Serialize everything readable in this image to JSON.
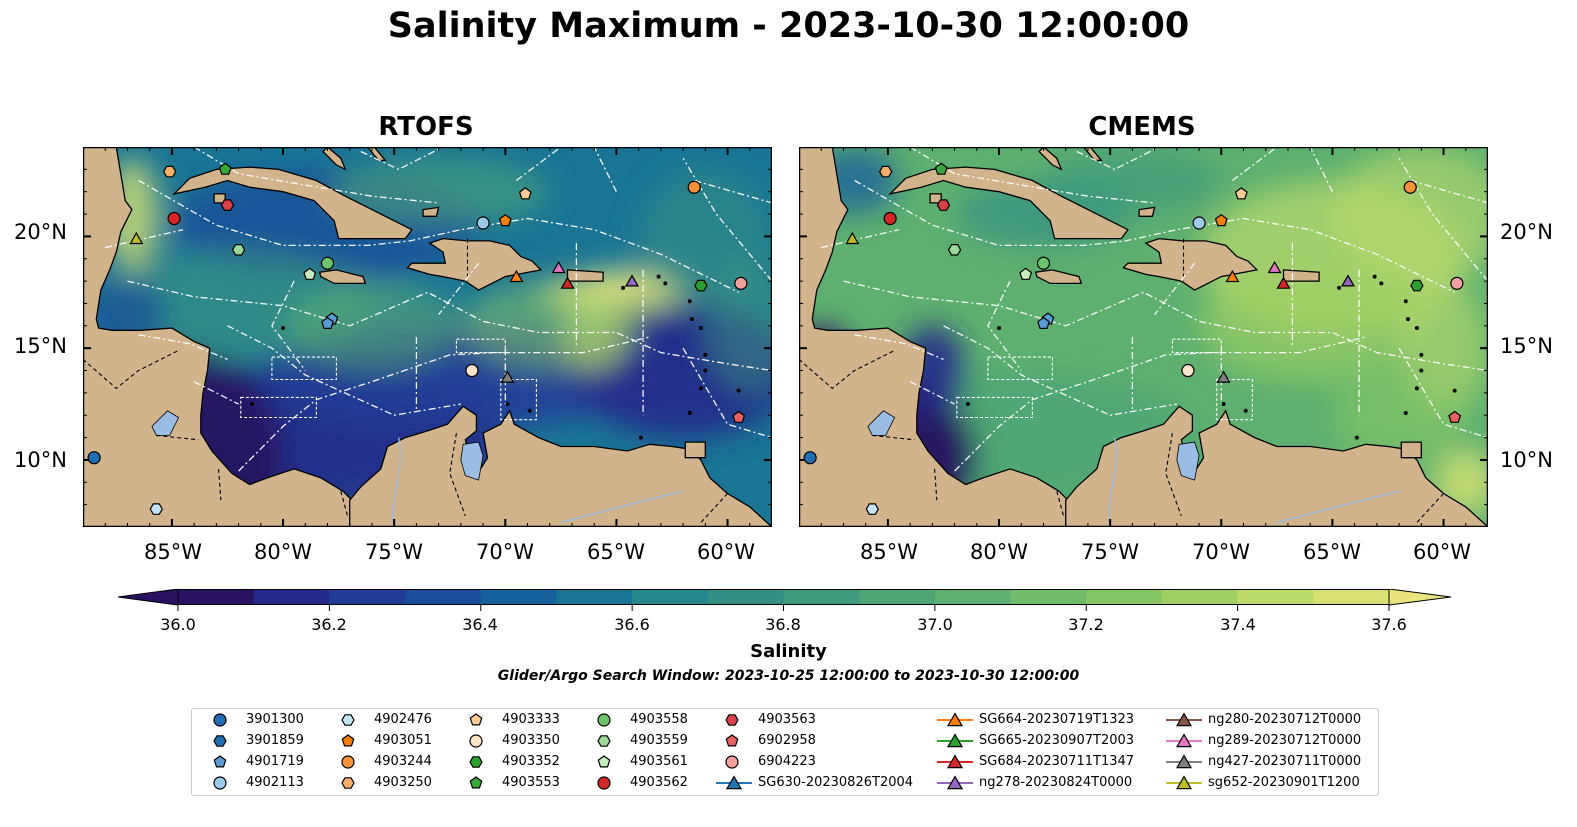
{
  "title": "Salinity Maximum - 2023-10-30 12:00:00",
  "panels": [
    {
      "title": "RTOFS",
      "scheme": "rtofs"
    },
    {
      "title": "CMEMS",
      "scheme": "cmems"
    }
  ],
  "lat_ticks": [
    "20°N",
    "15°N",
    "10°N"
  ],
  "lon_ticks": [
    "85°W",
    "80°W",
    "75°W",
    "70°W",
    "65°W",
    "60°W"
  ],
  "map_extent": {
    "lon": [
      -89,
      -58
    ],
    "lat": [
      7,
      24
    ]
  },
  "colorbar": {
    "label": "Salinity",
    "ticks": [
      "36.0",
      "36.2",
      "36.4",
      "36.6",
      "36.8",
      "37.0",
      "37.2",
      "37.4",
      "37.6"
    ],
    "range": [
      35.9,
      37.7
    ],
    "colors": [
      "#27135f",
      "#262a8a",
      "#213c97",
      "#1a4d99",
      "#16619b",
      "#1a7595",
      "#26868e",
      "#338e84",
      "#3f9a7d",
      "#4ea676",
      "#5fb070",
      "#72bb6a",
      "#87c666",
      "#a0d063",
      "#bcdb6c",
      "#d8e273",
      "#eae47f"
    ]
  },
  "search_window": "Glider/Argo Search Window: 2023-10-25 12:00:00 to 2023-10-30 12:00:00",
  "land_color": "#d2b48c",
  "legend": {
    "columns": [
      [
        {
          "label": "3901300",
          "marker": "circle",
          "color": "#1f6fb4"
        },
        {
          "label": "3901859",
          "marker": "hexagon",
          "color": "#1f6fb4"
        },
        {
          "label": "4901719",
          "marker": "pentagon",
          "color": "#5b9bd5"
        },
        {
          "label": "4902113",
          "marker": "circle",
          "color": "#9ecae9"
        }
      ],
      [
        {
          "label": "4902476",
          "marker": "hexagon",
          "color": "#c6e4f5"
        },
        {
          "label": "4903051",
          "marker": "pentagon",
          "color": "#f57f0b"
        },
        {
          "label": "4903244",
          "marker": "circle",
          "color": "#f7913a"
        },
        {
          "label": "4903250",
          "marker": "hexagon",
          "color": "#fbb068"
        }
      ],
      [
        {
          "label": "4903333",
          "marker": "pentagon",
          "color": "#fdcb94"
        },
        {
          "label": "4903350",
          "marker": "circle",
          "color": "#fde4c8"
        },
        {
          "label": "4903352",
          "marker": "hexagon",
          "color": "#2ca02c"
        },
        {
          "label": "4903553",
          "marker": "pentagon",
          "color": "#38a838"
        }
      ],
      [
        {
          "label": "4903558",
          "marker": "circle",
          "color": "#6cc56c"
        },
        {
          "label": "4903559",
          "marker": "hexagon",
          "color": "#9ad99a"
        },
        {
          "label": "4903561",
          "marker": "pentagon",
          "color": "#c8edc0"
        },
        {
          "label": "4903562",
          "marker": "circle",
          "color": "#d62728"
        }
      ],
      [
        {
          "label": "4903563",
          "marker": "hexagon",
          "color": "#d94048"
        },
        {
          "label": "6902958",
          "marker": "pentagon",
          "color": "#e86060"
        },
        {
          "label": "6904223",
          "marker": "circle",
          "color": "#f2a09e"
        },
        {
          "label": "SG630-20230826T2004",
          "marker": "triangle-line",
          "color": "#1f77b4"
        }
      ],
      [
        {
          "label": "SG664-20230719T1323",
          "marker": "triangle-line",
          "color": "#ff7f0e"
        },
        {
          "label": "SG665-20230907T2003",
          "marker": "triangle-line",
          "color": "#2ca02c"
        },
        {
          "label": "SG684-20230711T1347",
          "marker": "triangle-line",
          "color": "#d62728"
        },
        {
          "label": "ng278-20230824T0000",
          "marker": "triangle-line",
          "color": "#9467bd"
        }
      ],
      [
        {
          "label": "ng280-20230712T0000",
          "marker": "triangle-line",
          "color": "#8c564b"
        },
        {
          "label": "ng289-20230712T0000",
          "marker": "triangle-line",
          "color": "#e377c2"
        },
        {
          "label": "ng427-20230711T0000",
          "marker": "triangle-line",
          "color": "#7f7f7f"
        },
        {
          "label": "sg652-20230901T1200",
          "marker": "triangle-line",
          "color": "#bcbd22"
        }
      ]
    ]
  },
  "observations": [
    {
      "id": "4903250",
      "marker": "hexagon",
      "color": "#fbb068",
      "lon": -85.1,
      "lat": 22.9
    },
    {
      "id": "4903553",
      "marker": "pentagon",
      "color": "#38a838",
      "lon": -82.6,
      "lat": 23.0
    },
    {
      "id": "4903562",
      "marker": "circle",
      "color": "#d62728",
      "lon": -84.9,
      "lat": 20.8
    },
    {
      "id": "4903563",
      "marker": "hexagon",
      "color": "#d94048",
      "lon": -82.5,
      "lat": 21.4
    },
    {
      "id": "sg652-20230901T1200",
      "marker": "triangle",
      "color": "#bcbd22",
      "lon": -86.6,
      "lat": 19.9
    },
    {
      "id": "4903559",
      "marker": "hexagon",
      "color": "#9ad99a",
      "lon": -82.0,
      "lat": 19.4
    },
    {
      "id": "4903558",
      "marker": "circle",
      "color": "#6cc56c",
      "lon": -78.0,
      "lat": 18.8
    },
    {
      "id": "4903561",
      "marker": "pentagon",
      "color": "#c8edc0",
      "lon": -78.8,
      "lat": 18.3
    },
    {
      "id": "4901719",
      "marker": "pentagon",
      "color": "#5b9bd5",
      "lon": -77.8,
      "lat": 16.3
    },
    {
      "id": "4901719b",
      "marker": "pentagon",
      "color": "#5b9bd5",
      "lon": -78.0,
      "lat": 16.1
    },
    {
      "id": "4902113",
      "marker": "circle",
      "color": "#9ecae9",
      "lon": -71.0,
      "lat": 20.6
    },
    {
      "id": "4903051",
      "marker": "pentagon",
      "color": "#f57f0b",
      "lon": -70.0,
      "lat": 20.7
    },
    {
      "id": "4903333",
      "marker": "pentagon",
      "color": "#fdcb94",
      "lon": -69.1,
      "lat": 21.9
    },
    {
      "id": "4903244",
      "marker": "circle",
      "color": "#f7913a",
      "lon": -61.5,
      "lat": 22.2
    },
    {
      "id": "SG664-20230719T1323",
      "marker": "triangle",
      "color": "#ff7f0e",
      "lon": -69.5,
      "lat": 18.2
    },
    {
      "id": "ng289-20230712T0000",
      "marker": "triangle",
      "color": "#e377c2",
      "lon": -67.6,
      "lat": 18.6
    },
    {
      "id": "SG684-20230711T1347",
      "marker": "triangle",
      "color": "#d62728",
      "lon": -67.2,
      "lat": 17.9
    },
    {
      "id": "ng278-20230824T0000",
      "marker": "triangle",
      "color": "#9467bd",
      "lon": -64.3,
      "lat": 18.0
    },
    {
      "id": "4903352",
      "marker": "hexagon",
      "color": "#2ca02c",
      "lon": -61.2,
      "lat": 17.8
    },
    {
      "id": "6904223",
      "marker": "circle",
      "color": "#f2a09e",
      "lon": -59.4,
      "lat": 17.9
    },
    {
      "id": "4903350",
      "marker": "circle",
      "color": "#fde4c8",
      "lon": -71.5,
      "lat": 14.0
    },
    {
      "id": "ng427-20230711T0000",
      "marker": "triangle",
      "color": "#7f7f7f",
      "lon": -69.9,
      "lat": 13.7
    },
    {
      "id": "6902958",
      "marker": "pentagon",
      "color": "#e86060",
      "lon": -59.5,
      "lat": 11.9
    },
    {
      "id": "3901300",
      "marker": "circle",
      "color": "#1f6fb4",
      "lon": -88.5,
      "lat": 10.1
    },
    {
      "id": "4902476",
      "marker": "hexagon",
      "color": "#c6e4f5",
      "lon": -85.7,
      "lat": 7.8
    }
  ]
}
